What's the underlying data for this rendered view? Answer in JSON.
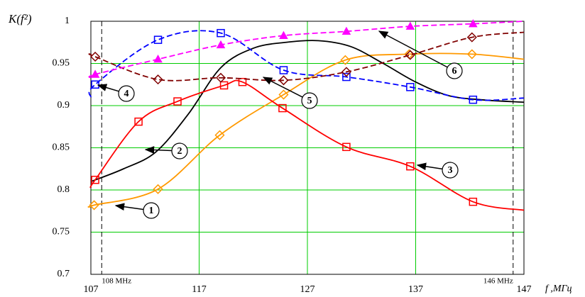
{
  "chart_data": {
    "type": "line",
    "y_label": "K(f²)",
    "x_label": "f ,МГц",
    "xlim": [
      107,
      147
    ],
    "xticks": [
      107,
      117,
      127,
      137,
      147
    ],
    "ylim": [
      0.7,
      1
    ],
    "yticks": [
      0.7,
      0.75,
      0.8,
      0.85,
      0.9,
      0.95,
      1
    ],
    "grid": true,
    "grid_color": "#00cc00",
    "reference_lines": [
      {
        "value": 108,
        "label": "108 MHz"
      },
      {
        "value": 146,
        "label": "146 MHz"
      }
    ],
    "series": [
      {
        "name": "1",
        "color": "#ff9900",
        "dash": false,
        "marker": "diamond",
        "x": [
          107,
          107.3,
          113.2,
          118.9,
          124.8,
          130.5,
          136.4,
          142.2,
          147
        ],
        "values": [
          0.78,
          0.782,
          0.801,
          0.865,
          0.913,
          0.954,
          0.961,
          0.961,
          0.955
        ]
      },
      {
        "name": "2",
        "color": "#000000",
        "dash": false,
        "marker": "none",
        "x": [
          107,
          110,
          113,
          116,
          119,
          122,
          125,
          128,
          131,
          134,
          137,
          140,
          143,
          147
        ],
        "values": [
          0.81,
          0.825,
          0.845,
          0.89,
          0.945,
          0.968,
          0.975,
          0.977,
          0.97,
          0.95,
          0.928,
          0.912,
          0.907,
          0.904
        ]
      },
      {
        "name": "3",
        "color": "#ff0000",
        "dash": false,
        "marker": "square",
        "x": [
          107,
          107.4,
          111.4,
          115,
          119.3,
          121,
          124.7,
          130.6,
          136.5,
          142.3,
          147
        ],
        "values": [
          0.803,
          0.812,
          0.881,
          0.905,
          0.924,
          0.928,
          0.897,
          0.851,
          0.828,
          0.786,
          0.776
        ]
      },
      {
        "name": "4",
        "color": "#0000ff",
        "dash": true,
        "marker": "square",
        "x": [
          107,
          107.4,
          113.2,
          119.0,
          124.8,
          130.6,
          136.5,
          142.3,
          147
        ],
        "values": [
          0.91,
          0.925,
          0.978,
          0.986,
          0.942,
          0.934,
          0.922,
          0.907,
          0.909
        ]
      },
      {
        "name": "5",
        "color": "#800000",
        "dash": true,
        "marker": "diamond",
        "x": [
          107,
          107.4,
          113.2,
          119.0,
          124.8,
          130.6,
          136.5,
          142.2,
          147
        ],
        "values": [
          0.961,
          0.958,
          0.931,
          0.933,
          0.93,
          0.94,
          0.96,
          0.981,
          0.987
        ]
      },
      {
        "name": "6",
        "color": "#ff00ff",
        "dash": true,
        "marker": "triangle",
        "x": [
          107,
          107.4,
          113.2,
          119.0,
          124.8,
          130.6,
          136.5,
          142.3,
          147
        ],
        "values": [
          0.933,
          0.937,
          0.955,
          0.972,
          0.983,
          0.988,
          0.994,
          0.997,
          1.0
        ]
      }
    ]
  }
}
